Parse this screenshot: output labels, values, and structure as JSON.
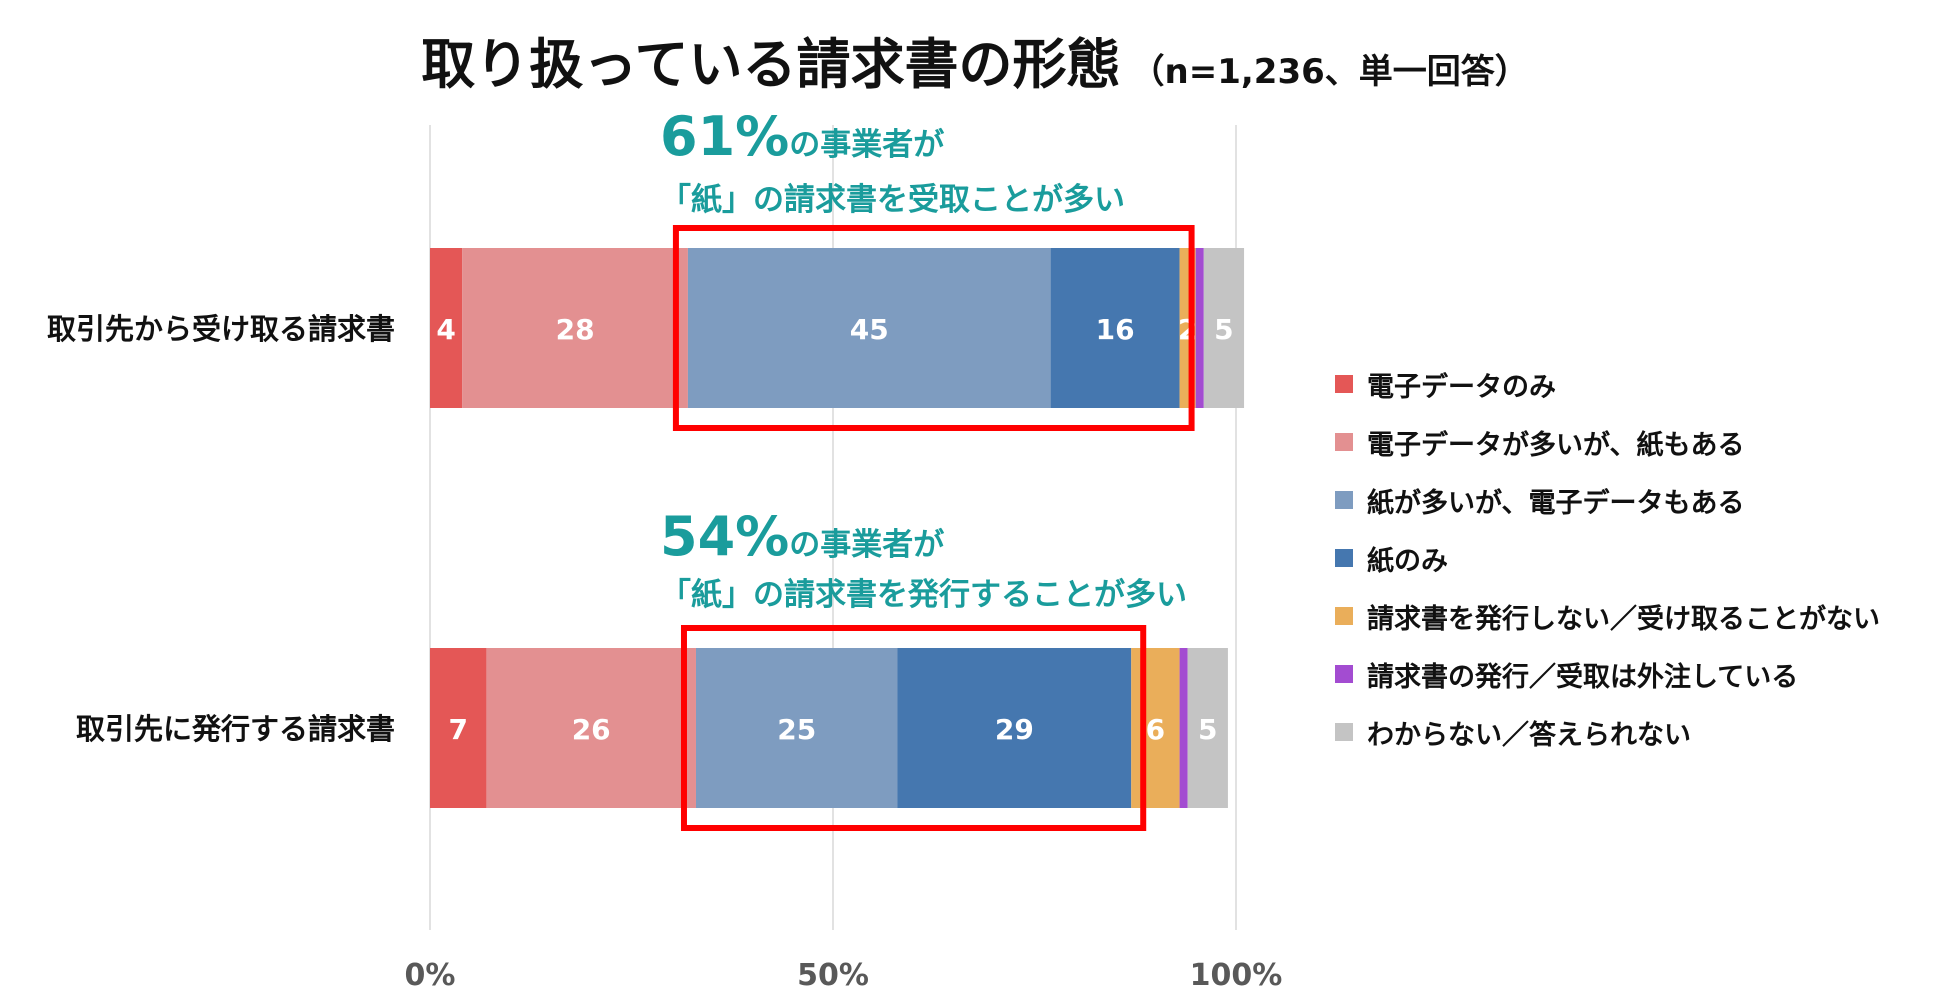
{
  "chart_data": {
    "type": "bar",
    "orientation": "horizontal",
    "stacked": true,
    "title": "取り扱っている請求書の形態",
    "subtitle": "（n=1,236、単一回答）",
    "categories": [
      "取引先から受け取る請求書",
      "取引先に発行する請求書"
    ],
    "series": [
      {
        "name": "電子データのみ",
        "color": "#E45756",
        "values": [
          4,
          7
        ],
        "labels": [
          "4",
          "7"
        ]
      },
      {
        "name": "電子データが多いが、紙もある",
        "color": "#E39091",
        "values": [
          28,
          26
        ],
        "labels": [
          "28",
          "26"
        ]
      },
      {
        "name": "紙が多いが、電子データもある",
        "color": "#7E9CC0",
        "values": [
          45,
          25
        ],
        "labels": [
          "45",
          "25"
        ]
      },
      {
        "name": "紙のみ",
        "color": "#4577AF",
        "values": [
          16,
          29
        ],
        "labels": [
          "16",
          "29"
        ]
      },
      {
        "name": "請求書を発行しない／受け取ることがない",
        "color": "#EAAE5A",
        "values": [
          2,
          6
        ],
        "labels": [
          "2",
          "6"
        ]
      },
      {
        "name": "請求書の発行／受取は外注している",
        "color": "#A34CD1",
        "values": [
          1,
          1
        ],
        "labels": [
          "",
          ""
        ]
      },
      {
        "name": "わからない／答えられない",
        "color": "#C4C4C4",
        "values": [
          5,
          5
        ],
        "labels": [
          "5",
          "5"
        ]
      }
    ],
    "xlim": [
      0,
      100
    ],
    "xticks": [
      0,
      50,
      100
    ],
    "xtick_labels": [
      "0%",
      "50%",
      "100%"
    ],
    "grid": true,
    "legend_position": "right",
    "annotations": [
      {
        "big": "61%",
        "line1": "の事業者が",
        "line2": "「紙」の請求書を受取ことが多い",
        "color": "#1A9C9C"
      },
      {
        "big": "54%",
        "line1": "の事業者が",
        "line2": "「紙」の請求書を発行することが多い",
        "color": "#1A9C9C"
      }
    ],
    "highlight_color": "#FF0000"
  }
}
